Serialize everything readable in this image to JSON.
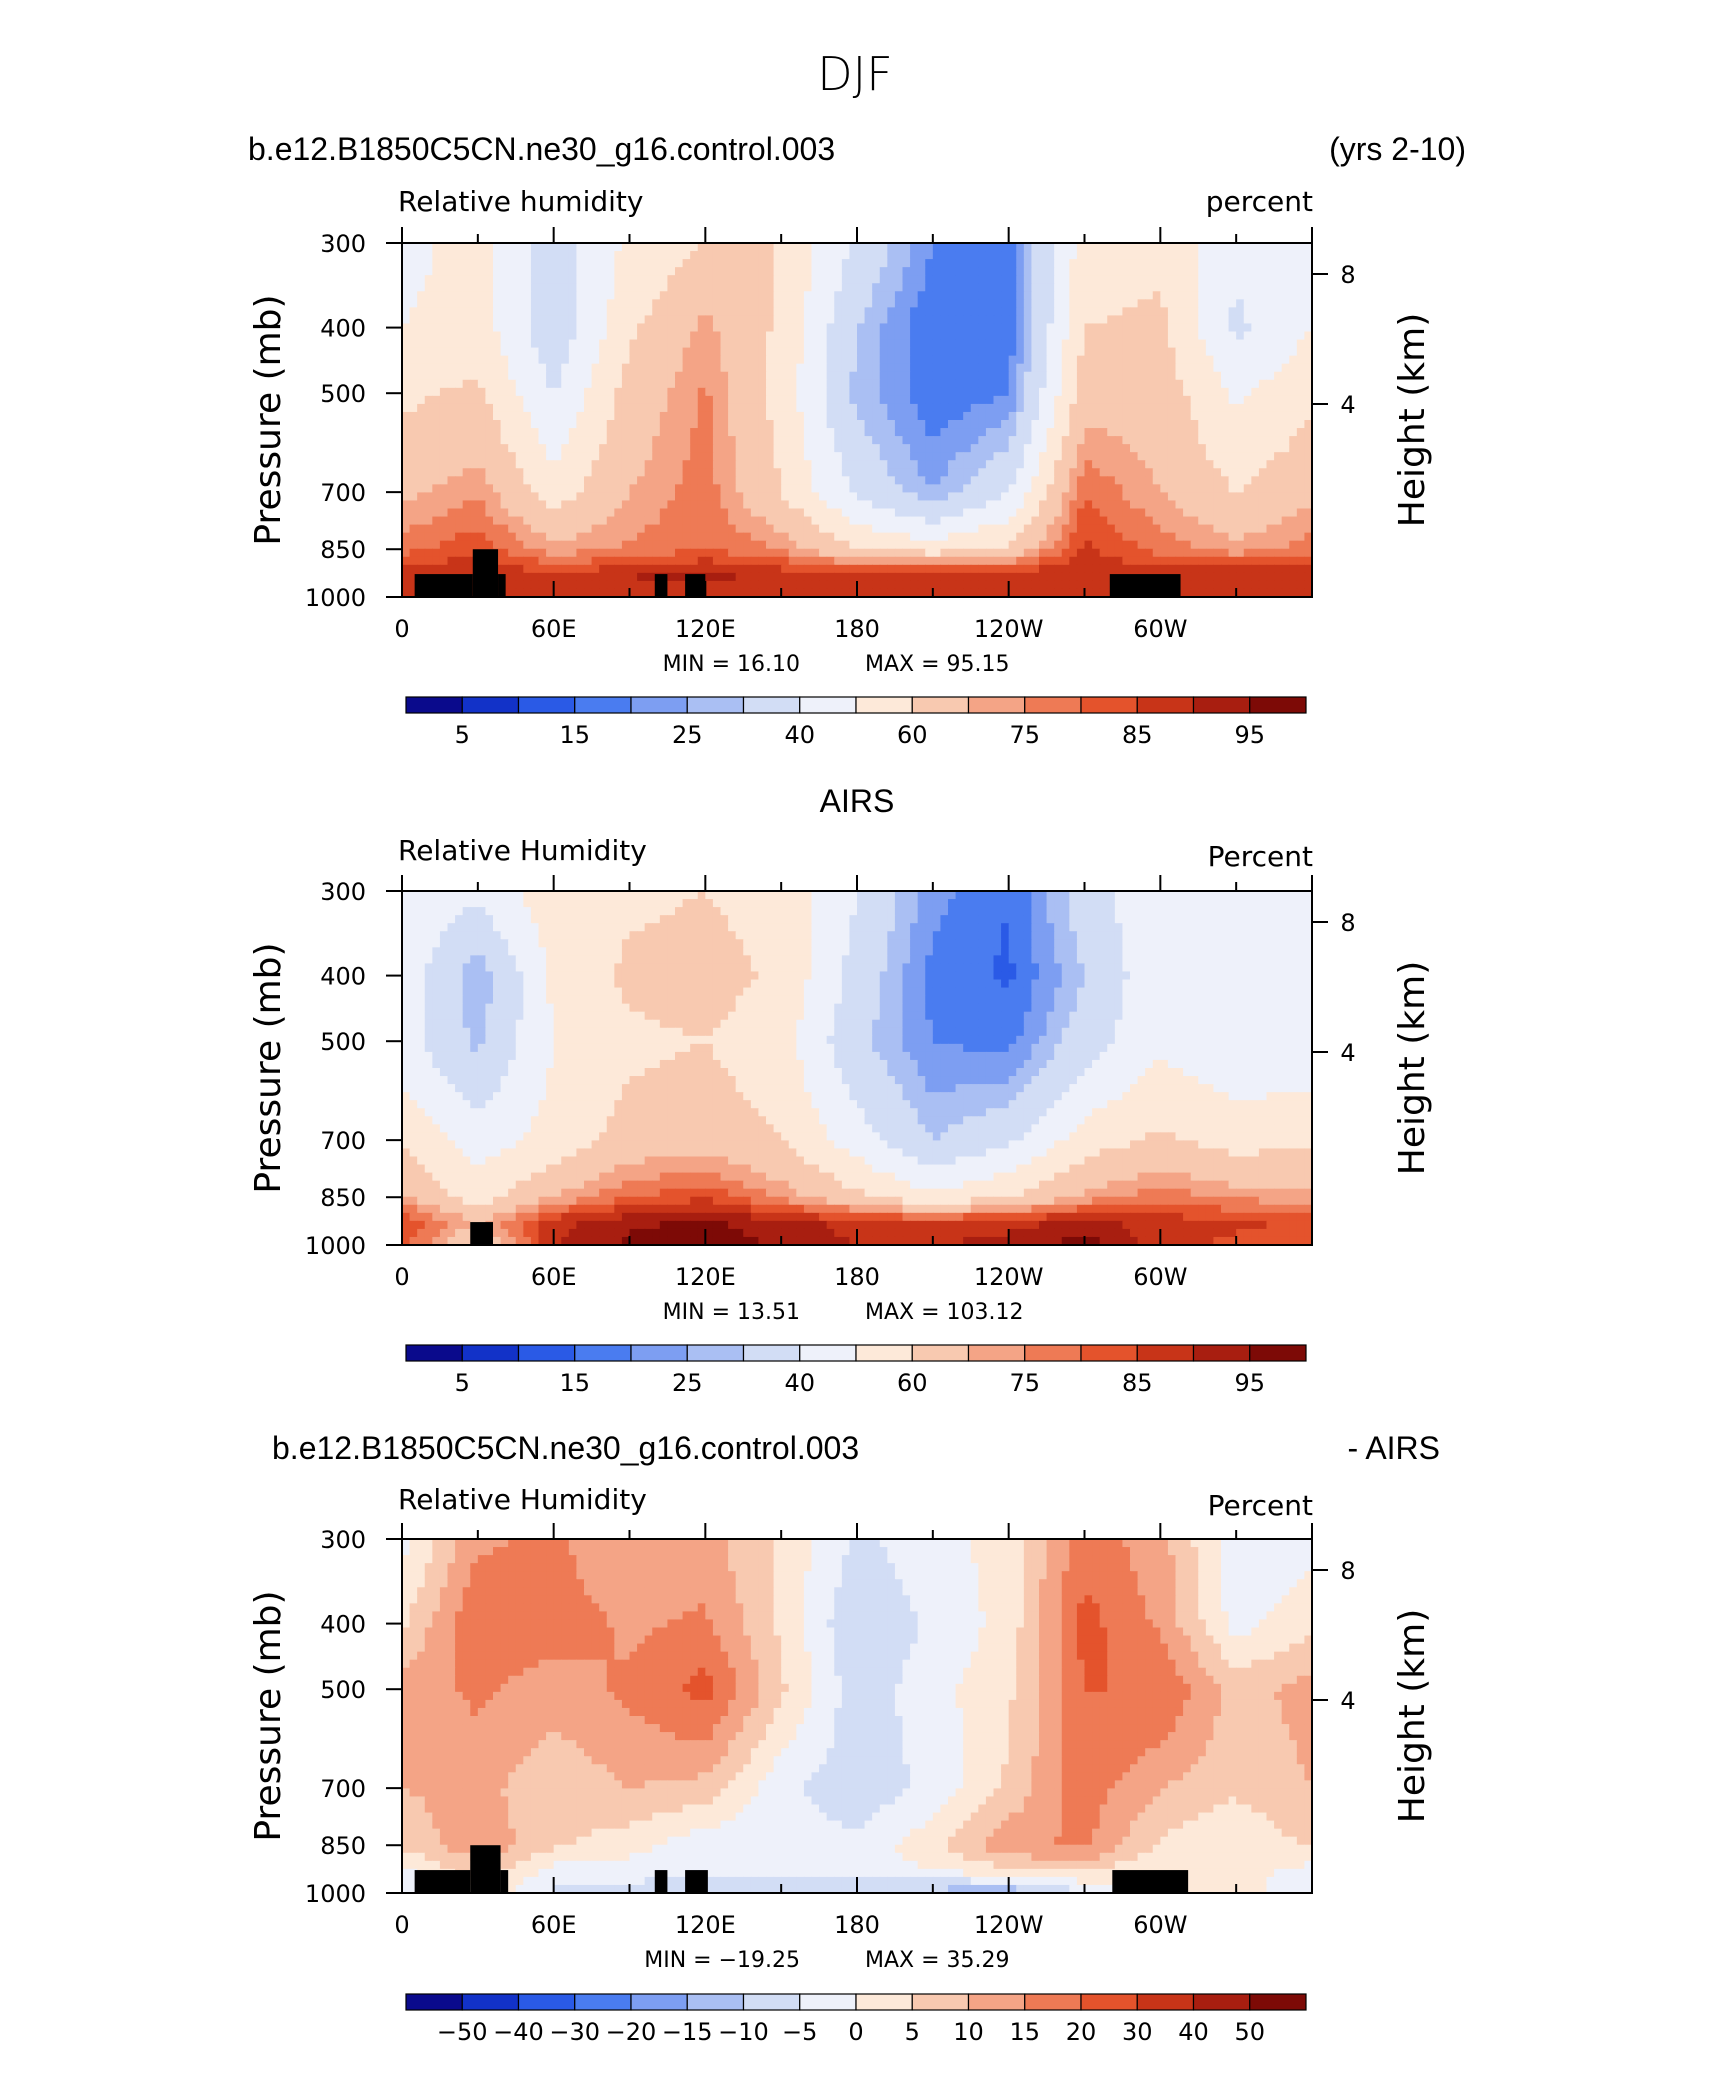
{
  "figure": {
    "title": "DJF"
  },
  "chart_data": [
    {
      "type": "heatmap",
      "panel_title_left": "b.e12.B1850C5CN.ne30_g16.control.003",
      "panel_title_right": "(yrs 2-10)",
      "variable": "Relative humidity",
      "units": "percent",
      "ylabel": "Pressure (mb)",
      "ylabel_right": "Height (km)",
      "y_ticks": [
        "300",
        "400",
        "500",
        "700",
        "850",
        "1000"
      ],
      "y_ticks_right": [
        "8",
        "4"
      ],
      "x_ticks": [
        "0",
        "60E",
        "120E",
        "180",
        "120W",
        "60W"
      ],
      "xlim": [
        0,
        360
      ],
      "ylim": [
        1000,
        300
      ],
      "min_label": "MIN = 16.10",
      "max_label": "MAX = 95.15",
      "min": 16.1,
      "max": 95.15,
      "colorbar_labels": [
        "5",
        "15",
        "25",
        "40",
        "60",
        "75",
        "85",
        "95"
      ],
      "colorbar_colors": [
        "#0a0a8c",
        "#1232c8",
        "#2a5ae6",
        "#4a7cf0",
        "#7d9ef2",
        "#aabff3",
        "#d2ddf5",
        "#eef1fa",
        "#fde9d9",
        "#f8c9b0",
        "#f4a486",
        "#ee7a55",
        "#e4532c",
        "#c83418",
        "#a81e10",
        "#7d0a06"
      ],
      "grid": {
        "pressure_levels": [
          300,
          400,
          500,
          700,
          850,
          925,
          1000
        ],
        "lon_points": [
          0,
          30,
          60,
          90,
          120,
          150,
          180,
          210,
          240,
          270,
          300,
          330,
          360
        ],
        "values": [
          [
            46,
            55,
            35,
            52,
            60,
            60,
            38,
            20,
            18,
            55,
            58,
            42,
            46
          ],
          [
            50,
            55,
            32,
            58,
            72,
            58,
            30,
            15,
            16,
            60,
            62,
            38,
            50
          ],
          [
            58,
            62,
            40,
            64,
            76,
            56,
            28,
            16,
            20,
            66,
            66,
            48,
            58
          ],
          [
            68,
            74,
            55,
            70,
            78,
            60,
            38,
            25,
            40,
            80,
            70,
            60,
            68
          ],
          [
            78,
            84,
            72,
            76,
            80,
            75,
            60,
            55,
            62,
            86,
            78,
            72,
            78
          ],
          [
            88,
            90,
            85,
            90,
            92,
            88,
            86,
            88,
            88,
            90,
            88,
            90,
            88
          ],
          [
            85,
            86,
            86,
            88,
            88,
            86,
            85,
            86,
            86,
            88,
            86,
            88,
            85
          ]
        ]
      },
      "topography": [
        {
          "lon0": 5,
          "lon1": 28,
          "p": 925
        },
        {
          "lon0": 28,
          "lon1": 38,
          "p": 850
        },
        {
          "lon0": 38,
          "lon1": 41,
          "p": 925
        },
        {
          "lon0": 100,
          "lon1": 105,
          "p": 925
        },
        {
          "lon0": 112,
          "lon1": 120,
          "p": 925
        },
        {
          "lon0": 280,
          "lon1": 308,
          "p": 925
        }
      ]
    },
    {
      "type": "heatmap",
      "panel_title_center": "AIRS",
      "variable": "Relative Humidity",
      "units": "Percent",
      "ylabel": "Pressure (mb)",
      "ylabel_right": "Height (km)",
      "y_ticks": [
        "300",
        "400",
        "500",
        "700",
        "850",
        "1000"
      ],
      "y_ticks_right": [
        "8",
        "4"
      ],
      "x_ticks": [
        "0",
        "60E",
        "120E",
        "180",
        "120W",
        "60W"
      ],
      "xlim": [
        0,
        360
      ],
      "ylim": [
        1000,
        300
      ],
      "min_label": "MIN = 13.51",
      "max_label": "MAX = 103.12",
      "min": 13.51,
      "max": 103.12,
      "colorbar_labels": [
        "5",
        "15",
        "25",
        "40",
        "60",
        "75",
        "85",
        "95"
      ],
      "colorbar_colors": [
        "#0a0a8c",
        "#1232c8",
        "#2a5ae6",
        "#4a7cf0",
        "#7d9ef2",
        "#aabff3",
        "#d2ddf5",
        "#eef1fa",
        "#fde9d9",
        "#f8c9b0",
        "#f4a486",
        "#ee7a55",
        "#e4532c",
        "#c83418",
        "#a81e10",
        "#7d0a06"
      ],
      "grid": {
        "pressure_levels": [
          300,
          400,
          500,
          700,
          850,
          925,
          1000
        ],
        "lon_points": [
          0,
          30,
          60,
          90,
          120,
          150,
          180,
          210,
          240,
          270,
          300,
          330,
          360
        ],
        "values": [
          [
            48,
            42,
            56,
            58,
            60,
            56,
            40,
            22,
            15,
            35,
            48,
            50,
            48
          ],
          [
            46,
            25,
            52,
            62,
            64,
            58,
            36,
            18,
            14,
            30,
            48,
            45,
            46
          ],
          [
            44,
            28,
            50,
            58,
            60,
            54,
            32,
            20,
            18,
            35,
            48,
            42,
            44
          ],
          [
            58,
            45,
            54,
            64,
            66,
            60,
            45,
            30,
            38,
            55,
            62,
            56,
            58
          ],
          [
            72,
            55,
            70,
            80,
            84,
            74,
            62,
            52,
            60,
            72,
            78,
            74,
            72
          ],
          [
            84,
            70,
            88,
            94,
            96,
            92,
            88,
            86,
            88,
            92,
            88,
            86,
            84
          ],
          [
            82,
            60,
            90,
            96,
            98,
            94,
            90,
            90,
            92,
            98,
            86,
            84,
            82
          ]
        ]
      },
      "topography": [
        {
          "lon0": 27,
          "lon1": 36,
          "p": 925
        }
      ]
    },
    {
      "type": "heatmap",
      "panel_title_left": "b.e12.B1850C5CN.ne30_g16.control.003",
      "panel_title_right": "- AIRS",
      "variable": "Relative Humidity",
      "units": "Percent",
      "ylabel": "Pressure (mb)",
      "ylabel_right": "Height (km)",
      "y_ticks": [
        "300",
        "400",
        "500",
        "700",
        "850",
        "1000"
      ],
      "y_ticks_right": [
        "8",
        "4"
      ],
      "x_ticks": [
        "0",
        "60E",
        "120E",
        "180",
        "120W",
        "60W"
      ],
      "xlim": [
        0,
        360
      ],
      "ylim": [
        1000,
        300
      ],
      "min_label": "MIN = −19.25",
      "max_label": "MAX = 35.29",
      "min": -19.25,
      "max": 35.29,
      "colorbar_labels": [
        "−50",
        "−40",
        "−30",
        "−20",
        "−15",
        "−10",
        "−5",
        "0",
        "5",
        "10",
        "15",
        "20",
        "30",
        "40",
        "50"
      ],
      "colorbar_colors": [
        "#0a0a8c",
        "#1232c8",
        "#2a5ae6",
        "#4a7cf0",
        "#7d9ef2",
        "#aabff3",
        "#d2ddf5",
        "#eef1fa",
        "#fde9d9",
        "#f8c9b0",
        "#f4a486",
        "#ee7a55",
        "#e4532c",
        "#c83418",
        "#a81e10",
        "#7d0a06"
      ],
      "grid": {
        "pressure_levels": [
          300,
          400,
          500,
          700,
          850,
          925,
          1000
        ],
        "lon_points": [
          0,
          30,
          60,
          90,
          120,
          150,
          180,
          210,
          240,
          270,
          300,
          330,
          360
        ],
        "values": [
          [
            -2,
            14,
            16,
            10,
            12,
            4,
            -6,
            -2,
            2,
            18,
            12,
            -4,
            -2
          ],
          [
            4,
            20,
            18,
            14,
            16,
            4,
            -10,
            -4,
            2,
            22,
            14,
            -2,
            4
          ],
          [
            12,
            16,
            12,
            16,
            22,
            6,
            -8,
            -2,
            4,
            20,
            20,
            8,
            12
          ],
          [
            10,
            12,
            6,
            10,
            8,
            -4,
            -8,
            -4,
            6,
            18,
            10,
            6,
            10
          ],
          [
            6,
            14,
            6,
            2,
            -4,
            -2,
            -4,
            4,
            14,
            16,
            4,
            0,
            6
          ],
          [
            -2,
            8,
            -2,
            -2,
            -4,
            -4,
            -4,
            0,
            4,
            6,
            0,
            2,
            -2
          ],
          [
            -4,
            4,
            -6,
            -8,
            -8,
            -10,
            -10,
            -12,
            -14,
            -6,
            0,
            2,
            -4
          ]
        ]
      },
      "topography": [
        {
          "lon0": 5,
          "lon1": 27,
          "p": 925
        },
        {
          "lon0": 27,
          "lon1": 39,
          "p": 850
        },
        {
          "lon0": 39,
          "lon1": 42,
          "p": 925
        },
        {
          "lon0": 100,
          "lon1": 105,
          "p": 925
        },
        {
          "lon0": 112,
          "lon1": 121,
          "p": 925
        },
        {
          "lon0": 281,
          "lon1": 311,
          "p": 925
        }
      ]
    }
  ]
}
